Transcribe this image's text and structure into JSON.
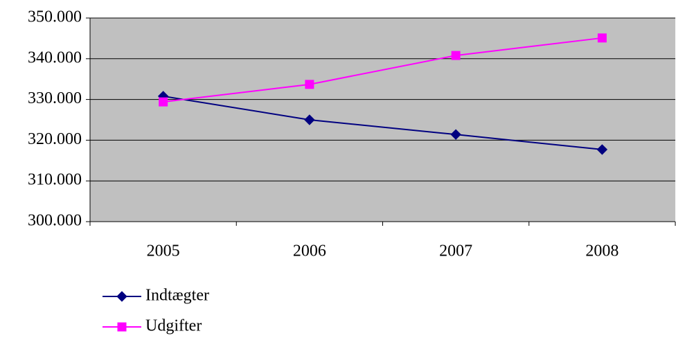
{
  "chart_data": {
    "type": "line",
    "categories": [
      "2005",
      "2006",
      "2007",
      "2008"
    ],
    "series": [
      {
        "name": "Indtægter",
        "color": "#000080",
        "marker": "diamond",
        "values": [
          330800,
          325000,
          321400,
          317700
        ]
      },
      {
        "name": "Udgifter",
        "color": "#ff00ff",
        "marker": "square",
        "values": [
          329400,
          333700,
          340800,
          345100
        ]
      }
    ],
    "ylim": [
      300000,
      350000
    ],
    "yticks": [
      {
        "value": 300000,
        "label": "300.000"
      },
      {
        "value": 310000,
        "label": "310.000"
      },
      {
        "value": 320000,
        "label": "320.000"
      },
      {
        "value": 330000,
        "label": "330.000"
      },
      {
        "value": 340000,
        "label": "340.000"
      },
      {
        "value": 350000,
        "label": "350.000"
      }
    ],
    "grid": true,
    "plot_background": "#c0c0c0",
    "legend": "bottom"
  }
}
